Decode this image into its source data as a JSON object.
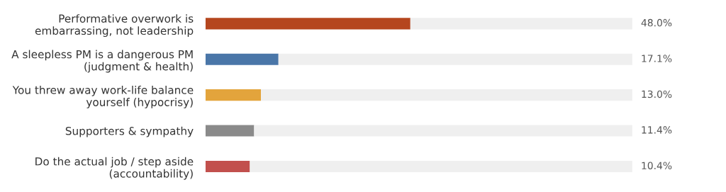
{
  "chart_data": {
    "type": "bar",
    "orientation": "horizontal",
    "stacked": true,
    "categories": [
      "Performative overwork is\nembarrassing, not leadership",
      "A sleepless PM is a dangerous PM\n(judgment & health)",
      "You threw away work-life balance\nyourself (hypocrisy)",
      "Supporters & sympathy",
      "Do the actual job / step aside\n(accountability)"
    ],
    "series": [
      {
        "colors": [
          "#b5461e",
          "#4a76a8",
          "#e3a43c",
          "#8a8a8a",
          "#c2504d"
        ],
        "values": [
          48.0,
          17.1,
          13.0,
          11.4,
          10.4
        ],
        "value_labels": [
          "48.0%",
          "17.1%",
          "13.0%",
          "11.4%",
          "10.4%"
        ]
      },
      {
        "color": "#efefef",
        "values": [
          52.0,
          82.9,
          87.0,
          88.6,
          89.6
        ]
      }
    ],
    "xlim": [
      0,
      100
    ],
    "tick_labels": "y",
    "grid": false,
    "legend": false
  }
}
